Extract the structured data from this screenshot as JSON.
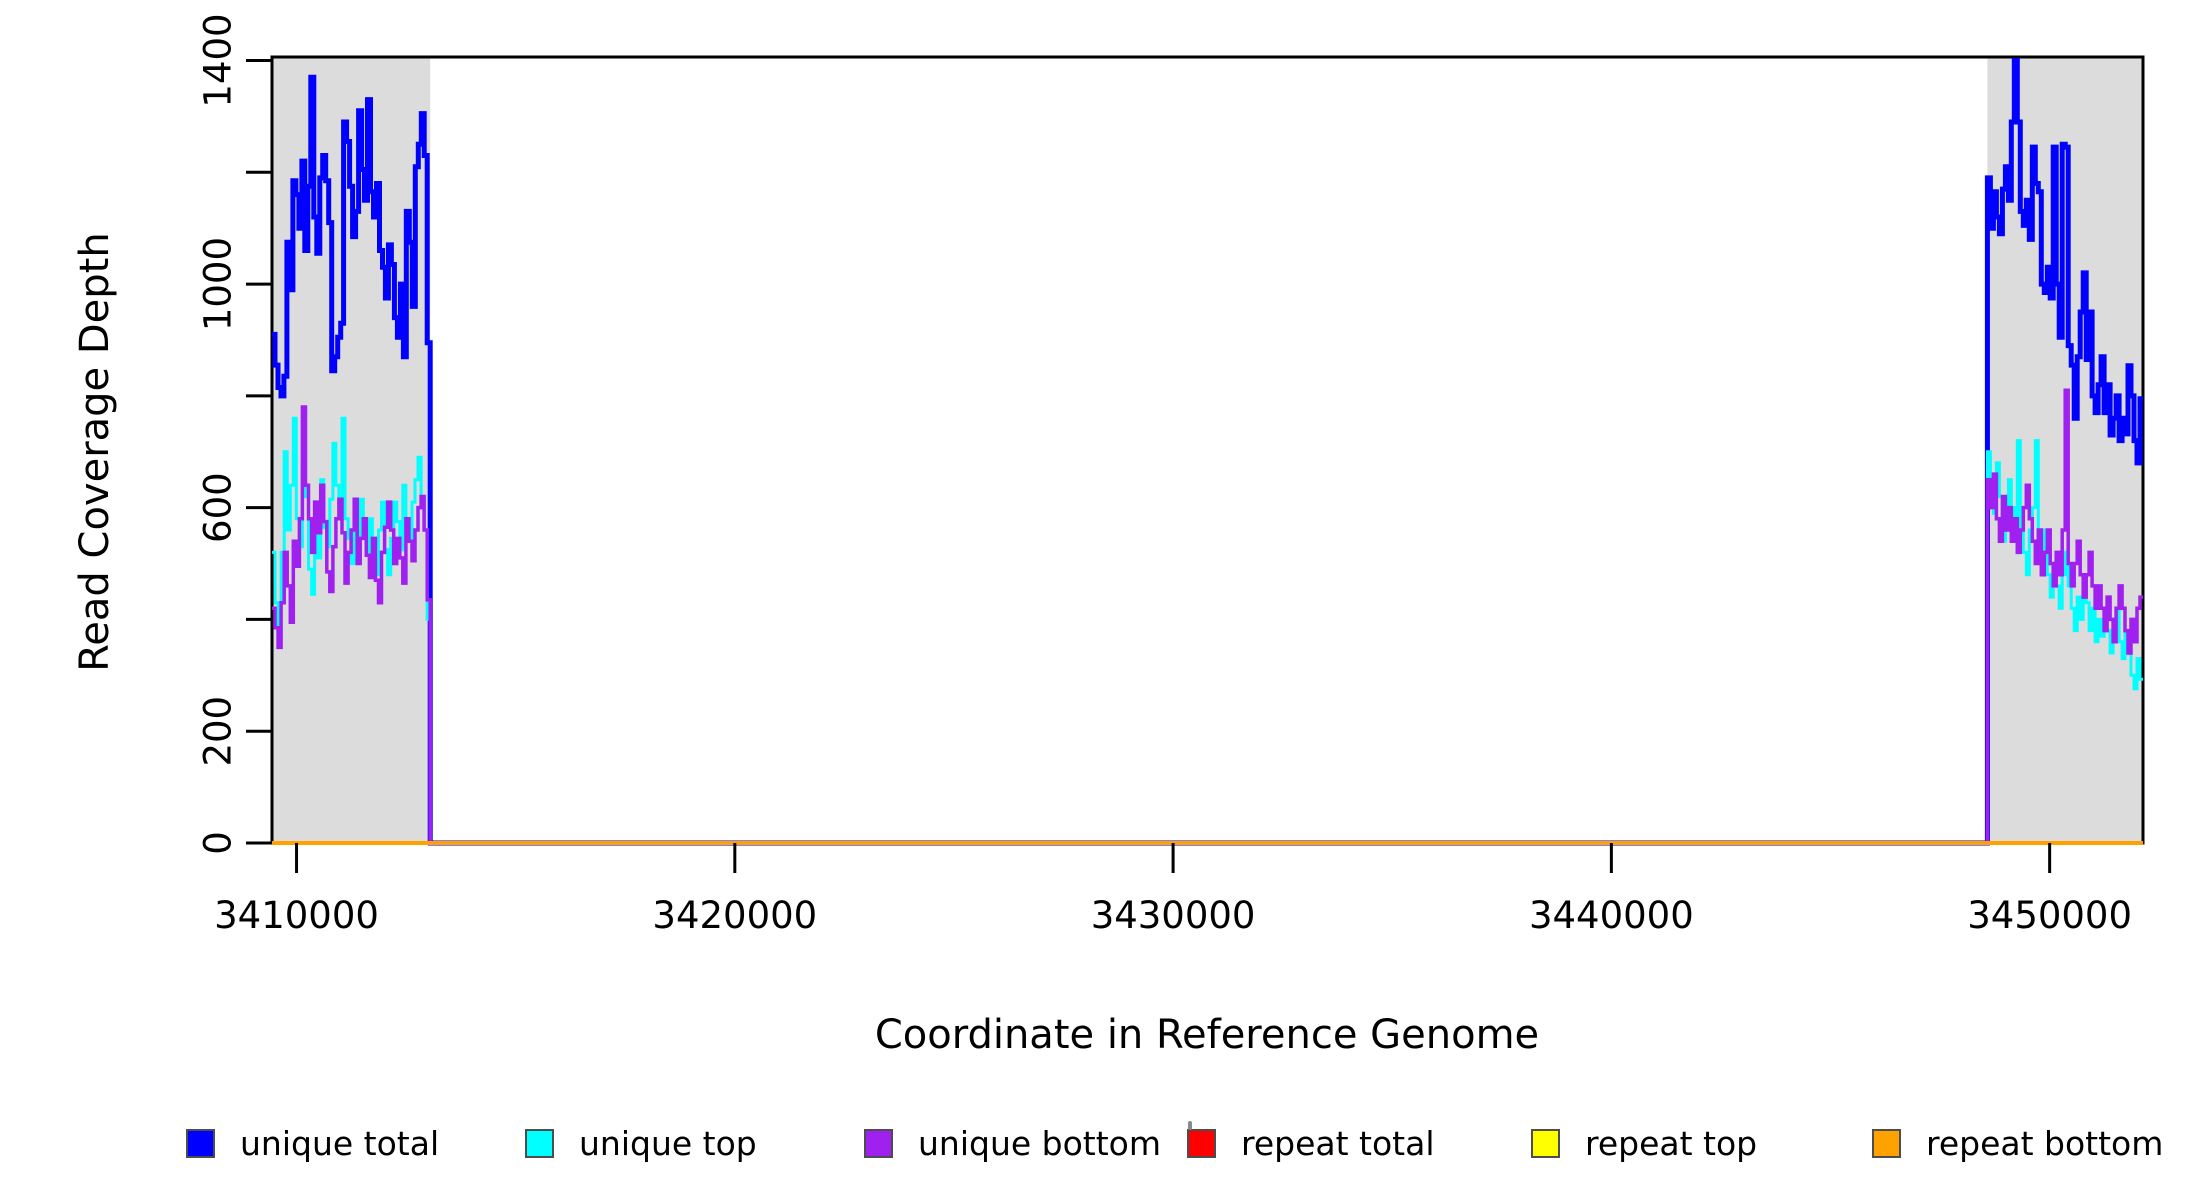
{
  "figure": {
    "x_axis_title": "Coordinate in Reference Genome",
    "y_axis_title": "Read Coverage Depth"
  },
  "legend": {
    "items": [
      {
        "label": "unique total",
        "color": "#0000FF"
      },
      {
        "label": "unique top",
        "color": "#00FFFF"
      },
      {
        "label": "unique bottom",
        "color": "#A020F0"
      },
      {
        "label": "repeat total",
        "color": "#FF0000"
      },
      {
        "label": "repeat top",
        "color": "#FFFF00"
      },
      {
        "label": "repeat bottom",
        "color": "#FFA200"
      }
    ]
  },
  "chart_data": {
    "type": "line",
    "subtype": "step",
    "title": "",
    "xlabel": "Coordinate in Reference Genome",
    "ylabel": "Read Coverage Depth",
    "xlim": [
      3409440,
      3452130
    ],
    "ylim": [
      0,
      1405
    ],
    "grid": false,
    "legend_position": "bottom",
    "xticks": [
      3410000,
      3420000,
      3430000,
      3440000,
      3450000
    ],
    "xtick_labels": [
      "3410000",
      "3420000",
      "3430000",
      "3440000",
      "3450000"
    ],
    "yticks": [
      0,
      200,
      400,
      600,
      800,
      1000,
      1200,
      1400
    ],
    "ytick_labels": [
      "0",
      "200",
      "",
      "600",
      "",
      "1000",
      "",
      "1400"
    ],
    "shaded_regions": [
      {
        "x0": 3409440,
        "x1": 3413050,
        "color": "#DCDCDC"
      },
      {
        "x0": 3448580,
        "x1": 3452130,
        "color": "#DCDCDC"
      }
    ],
    "series": [
      {
        "name": "unique total",
        "color": "#0000FF",
        "width": 5,
        "segments": [
          {
            "type": "steps",
            "x0": 3409440,
            "x1": 3413050,
            "values": [
              910,
              855,
              815,
              800,
              835,
              1075,
              990,
              1185,
              1160,
              1100,
              1220,
              1060,
              1175,
              1370,
              1120,
              1055,
              1190,
              1230,
              1185,
              1110,
              845,
              870,
              905,
              930,
              1290,
              1255,
              1175,
              1085,
              1130,
              1310,
              1205,
              1150,
              1330,
              1165,
              1120,
              1180,
              1060,
              1030,
              975,
              1070,
              1035,
              940,
              905,
              1000,
              870,
              1130,
              1075,
              960,
              1210,
              1250,
              1305,
              1230,
              895
            ]
          },
          {
            "type": "flat",
            "x0": 3413050,
            "x1": 3448580,
            "value": 0
          },
          {
            "type": "steps",
            "x0": 3448580,
            "x1": 3452130,
            "values": [
              1190,
              1100,
              1165,
              1120,
              1090,
              1170,
              1210,
              1150,
              1290,
              1400,
              1290,
              1130,
              1105,
              1150,
              1080,
              1245,
              1180,
              1165,
              1000,
              985,
              1030,
              975,
              1245,
              1000,
              905,
              1250,
              1245,
              890,
              855,
              760,
              870,
              950,
              1020,
              865,
              950,
              800,
              770,
              820,
              870,
              770,
              820,
              730,
              760,
              800,
              720,
              760,
              732,
              854,
              800,
              720,
              680,
              795
            ]
          }
        ]
      },
      {
        "name": "unique top",
        "color": "#00FFFF",
        "width": 3,
        "segments": [
          {
            "type": "steps",
            "x0": 3409440,
            "x1": 3413050,
            "values": [
              520,
              430,
              365,
              520,
              700,
              560,
              640,
              760,
              580,
              530,
              680,
              620,
              490,
              445,
              565,
              510,
              650,
              565,
              530,
              615,
              715,
              640,
              600,
              760,
              580,
              545,
              500,
              580,
              545,
              615,
              560,
              520,
              580,
              540,
              480,
              560,
              610,
              525,
              480,
              545,
              610,
              575,
              525,
              640,
              580,
              545,
              610,
              650,
              690,
              620,
              560,
              400
            ]
          },
          {
            "type": "flat",
            "x0": 3413050,
            "x1": 3448580,
            "value": 0
          },
          {
            "type": "steps",
            "x0": 3448580,
            "x1": 3452130,
            "values": [
              700,
              640,
              590,
              680,
              620,
              540,
              580,
              650,
              600,
              560,
              720,
              560,
              520,
              480,
              560,
              600,
              720,
              500,
              560,
              520,
              480,
              440,
              500,
              460,
              420,
              480,
              520,
              460,
              420,
              380,
              440,
              400,
              480,
              430,
              380,
              420,
              360,
              400,
              370,
              420,
              380,
              340,
              380,
              420,
              360,
              330,
              380,
              340,
              300,
              276,
              330,
              293
            ]
          }
        ]
      },
      {
        "name": "unique bottom",
        "color": "#A020F0",
        "width": 3.5,
        "segments": [
          {
            "type": "steps",
            "x0": 3409440,
            "x1": 3413050,
            "values": [
              420,
              385,
              350,
              430,
              520,
              460,
              395,
              540,
              495,
              580,
              780,
              640,
              580,
              520,
              610,
              555,
              640,
              575,
              485,
              450,
              530,
              580,
              615,
              555,
              465,
              520,
              560,
              615,
              500,
              545,
              580,
              515,
              475,
              545,
              470,
              430,
              520,
              565,
              610,
              560,
              500,
              545,
              510,
              465,
              580,
              540,
              505,
              560,
              600,
              620,
              560,
              435
            ]
          },
          {
            "type": "flat",
            "x0": 3413050,
            "x1": 3448580,
            "value": 0
          },
          {
            "type": "steps",
            "x0": 3448580,
            "x1": 3452130,
            "values": [
              650,
              600,
              660,
              580,
              540,
              620,
              560,
              600,
              540,
              580,
              520,
              560,
              600,
              640,
              580,
              540,
              500,
              560,
              480,
              520,
              560,
              500,
              460,
              520,
              480,
              560,
              810,
              500,
              460,
              500,
              540,
              480,
              440,
              480,
              520,
              460,
              420,
              460,
              420,
              380,
              440,
              400,
              360,
              420,
              460,
              420,
              380,
              340,
              400,
              360,
              420,
              440
            ]
          }
        ]
      },
      {
        "name": "repeat total",
        "color": "#FF0000",
        "width": 3,
        "segments": [
          {
            "type": "flat",
            "x0": 3409440,
            "x1": 3413050,
            "value": 0
          },
          {
            "type": "flat",
            "x0": 3448580,
            "x1": 3452130,
            "value": 0
          }
        ]
      },
      {
        "name": "repeat top",
        "color": "#FFFF00",
        "width": 3,
        "segments": [
          {
            "type": "flat",
            "x0": 3409440,
            "x1": 3413050,
            "value": 0
          },
          {
            "type": "flat",
            "x0": 3448580,
            "x1": 3452130,
            "value": 0
          }
        ]
      },
      {
        "name": "repeat bottom",
        "color": "#FFA200",
        "width": 4,
        "segments": [
          {
            "type": "flat",
            "x0": 3409440,
            "x1": 3413050,
            "value": 0
          },
          {
            "type": "flat",
            "x0": 3448580,
            "x1": 3452130,
            "value": 0
          }
        ]
      }
    ]
  }
}
